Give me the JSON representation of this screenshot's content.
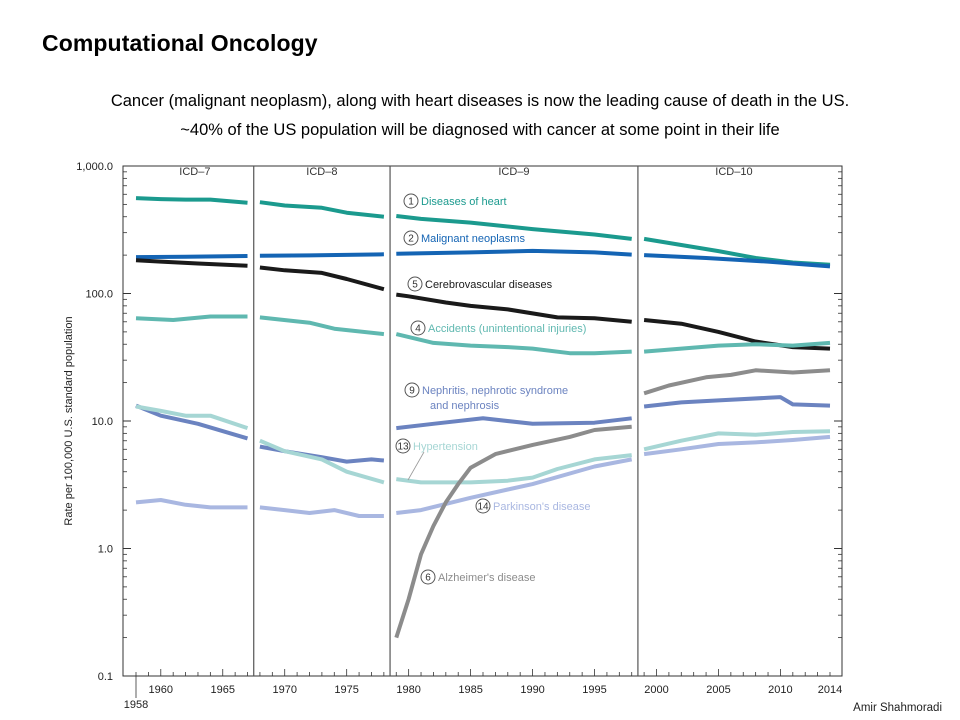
{
  "slide": {
    "title": "Computational Oncology",
    "subtitle_line1": "Cancer (malignant neoplasm), along with heart diseases is now the leading cause of death in the US.",
    "subtitle_line2": "~40% of the US population will be diagnosed with cancer at some point in their life",
    "author": "Amir Shahmoradi"
  },
  "chart_data": {
    "type": "line",
    "title": "",
    "ylabel": "Rate per 100,000 U.S. standard population",
    "xlabel": "",
    "yscale": "log",
    "ylim": [
      0.1,
      1000
    ],
    "xlim": [
      1958,
      2014
    ],
    "y_tick_labels": [
      "1,000.0",
      "100.0",
      "10.0",
      "1.0",
      "0.1"
    ],
    "y_tick_values": [
      1000,
      100,
      10,
      1,
      0.1
    ],
    "x_tick_labels": [
      "1960",
      "1965",
      "1970",
      "1975",
      "1980",
      "1985",
      "1990",
      "1995",
      "2000",
      "2005",
      "2010",
      "2014"
    ],
    "x_tick_values": [
      1960,
      1965,
      1970,
      1975,
      1980,
      1985,
      1990,
      1995,
      2000,
      2005,
      2010,
      2014
    ],
    "x_start_label": "1958",
    "periods": [
      {
        "label": "ICD–7",
        "start": 1958,
        "end": 1967.5
      },
      {
        "label": "ICD–8",
        "start": 1967.5,
        "end": 1978.5
      },
      {
        "label": "ICD–9",
        "start": 1978.5,
        "end": 1998.5
      },
      {
        "label": "ICD–10",
        "start": 1998.5,
        "end": 2014
      }
    ],
    "series": [
      {
        "name": "Diseases of heart",
        "number": "1",
        "color": "#1b9a8e",
        "x": [
          1958,
          1960,
          1962,
          1964,
          1967,
          1968,
          1970,
          1973,
          1975,
          1978,
          1979,
          1981,
          1985,
          1990,
          1995,
          1998,
          1999,
          2002,
          2005,
          2008,
          2011,
          2014
        ],
        "y": [
          560,
          550,
          545,
          545,
          515,
          520,
          490,
          470,
          430,
          400,
          405,
          385,
          360,
          320,
          290,
          268,
          268,
          240,
          215,
          190,
          175,
          168
        ]
      },
      {
        "name": "Malignant neoplasms",
        "number": "2",
        "color": "#1464b4",
        "x": [
          1958,
          1962,
          1967,
          1968,
          1972,
          1978,
          1979,
          1985,
          1990,
          1995,
          1998,
          1999,
          2004,
          2009,
          2014
        ],
        "y": [
          193,
          194,
          197,
          198,
          199,
          203,
          205,
          210,
          216,
          210,
          202,
          200,
          190,
          178,
          163
        ]
      },
      {
        "name": "Cerebrovascular diseases",
        "number": "5",
        "color": "#1a1a1a",
        "x": [
          1958,
          1960,
          1963,
          1967,
          1968,
          1970,
          1973,
          1975,
          1978,
          1979,
          1980,
          1983,
          1985,
          1988,
          1992,
          1995,
          1998,
          1999,
          2002,
          2005,
          2008,
          2011,
          2014
        ],
        "y": [
          182,
          178,
          172,
          165,
          160,
          152,
          145,
          130,
          108,
          98,
          95,
          85,
          80,
          75,
          65,
          64,
          60,
          62,
          58,
          50,
          42,
          38,
          37
        ]
      },
      {
        "name": "Accidents (unintentional injuries)",
        "number": "4",
        "color": "#5fb8b0",
        "x": [
          1958,
          1961,
          1964,
          1967,
          1968,
          1972,
          1974,
          1978,
          1979,
          1982,
          1985,
          1988,
          1990,
          1993,
          1995,
          1998,
          1999,
          2002,
          2005,
          2008,
          2011,
          2014
        ],
        "y": [
          64,
          62,
          66,
          66,
          65,
          59,
          53,
          48,
          48,
          41,
          39,
          38,
          37,
          34,
          34,
          35,
          35,
          37,
          39,
          40,
          39,
          41
        ]
      },
      {
        "name": "Nephritis, nephrotic syndrome and nephrosis",
        "number": "9",
        "color": "#6b83c0",
        "x": [
          1958,
          1960,
          1963,
          1967,
          1968,
          1970,
          1973,
          1975,
          1977,
          1978,
          1979,
          1982,
          1986,
          1990,
          1995,
          1998,
          1999,
          2002,
          2005,
          2009,
          2010,
          2011,
          2014
        ],
        "y": [
          13.2,
          11,
          9.5,
          7.3,
          6.3,
          5.8,
          5.2,
          4.8,
          5,
          4.9,
          8.8,
          9.5,
          10.5,
          9.5,
          9.7,
          10.5,
          13,
          14,
          14.5,
          15.2,
          15.4,
          13.5,
          13.2
        ]
      },
      {
        "name": "Hypertension",
        "number": "13",
        "color": "#a6d6d4",
        "x": [
          1958,
          1960,
          1962,
          1964,
          1967,
          1968,
          1970,
          1973,
          1975,
          1978,
          1979,
          1981,
          1985,
          1988,
          1990,
          1992,
          1995,
          1998,
          1999,
          2002,
          2005,
          2008,
          2011,
          2014
        ],
        "y": [
          13,
          12,
          11,
          11,
          8.8,
          7,
          5.8,
          5,
          4,
          3.3,
          3.5,
          3.3,
          3.3,
          3.4,
          3.6,
          4.2,
          5,
          5.4,
          6,
          7,
          8,
          7.8,
          8.2,
          8.3
        ]
      },
      {
        "name": "Parkinson's disease",
        "number": "14",
        "color": "#a9b7e1",
        "x": [
          1958,
          1960,
          1962,
          1964,
          1967,
          1968,
          1970,
          1972,
          1974,
          1976,
          1978,
          1979,
          1981,
          1985,
          1988,
          1990,
          1995,
          1998,
          1999,
          2002,
          2005,
          2008,
          2011,
          2014
        ],
        "y": [
          2.3,
          2.4,
          2.2,
          2.1,
          2.1,
          2.1,
          2.0,
          1.9,
          2.0,
          1.8,
          1.8,
          1.9,
          2.0,
          2.5,
          2.9,
          3.2,
          4.4,
          5.0,
          5.5,
          6.0,
          6.6,
          6.8,
          7.1,
          7.5
        ]
      },
      {
        "name": "Alzheimer's disease",
        "number": "6",
        "color": "#8c8c8c",
        "x": [
          1979,
          1980,
          1981,
          1982,
          1983,
          1984,
          1985,
          1987,
          1990,
          1993,
          1995,
          1998,
          1999,
          2001,
          2004,
          2006,
          2008,
          2011,
          2014
        ],
        "y": [
          0.2,
          0.4,
          0.9,
          1.5,
          2.3,
          3.2,
          4.3,
          5.5,
          6.5,
          7.5,
          8.5,
          9,
          16.5,
          19,
          22,
          23,
          25,
          24,
          25
        ]
      }
    ]
  }
}
